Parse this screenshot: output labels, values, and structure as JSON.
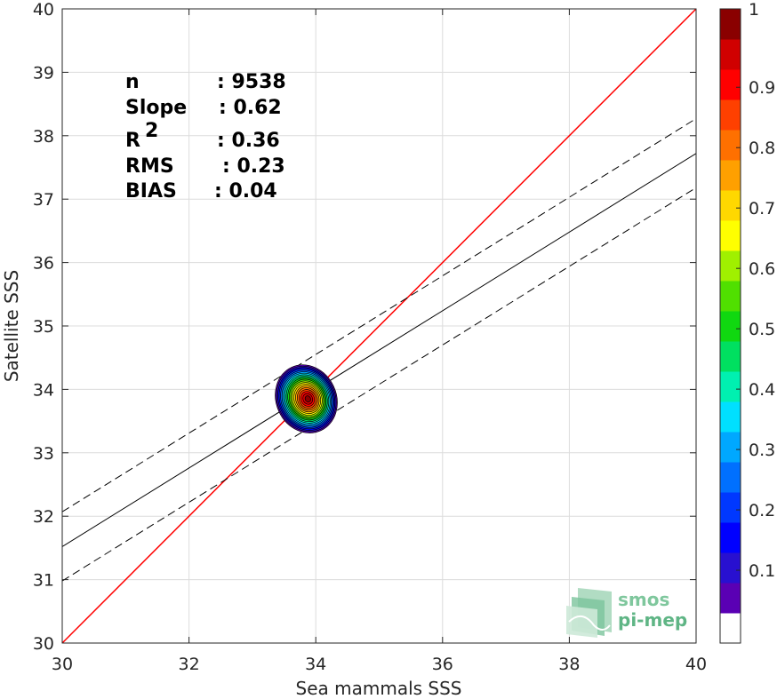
{
  "chart_data": {
    "type": "scatter",
    "subtype": "density-contour",
    "xlabel": "Sea mammals SSS",
    "ylabel": "Satellite SSS",
    "xlim": [
      30,
      40
    ],
    "ylim": [
      30,
      40
    ],
    "xticks": [
      "30",
      "32",
      "34",
      "36",
      "38",
      "40"
    ],
    "yticks": [
      "30",
      "31",
      "32",
      "33",
      "34",
      "35",
      "36",
      "37",
      "38",
      "39",
      "40"
    ],
    "grid": true,
    "stats": [
      {
        "label": "n",
        "value": ": 9538"
      },
      {
        "label": "Slope",
        "value": ": 0.62"
      },
      {
        "label": "R",
        "sup": "2",
        "value": ": 0.36"
      },
      {
        "label": "RMS",
        "value": ": 0.23"
      },
      {
        "label": "BIAS",
        "value": ": 0.04"
      }
    ],
    "density_center": [
      33.85,
      33.85
    ],
    "density_extent": {
      "x": [
        33.45,
        34.4
      ],
      "y": [
        33.35,
        34.45
      ]
    },
    "lines": [
      {
        "name": "1:1",
        "style": "solid",
        "color": "#ff0000",
        "x": [
          30,
          40
        ],
        "y": [
          30,
          40
        ]
      },
      {
        "name": "fit",
        "style": "solid",
        "color": "#000000",
        "x": [
          30,
          40
        ],
        "y": [
          31.52,
          37.72
        ]
      },
      {
        "name": "fit+",
        "style": "dashed",
        "color": "#000000",
        "x": [
          30,
          40
        ],
        "y": [
          32.07,
          38.27
        ]
      },
      {
        "name": "fit-",
        "style": "dashed",
        "color": "#000000",
        "x": [
          30,
          40
        ],
        "y": [
          30.98,
          37.18
        ]
      }
    ],
    "colorbar": {
      "ticks": [
        "0.1",
        "0.2",
        "0.3",
        "0.4",
        "0.5",
        "0.6",
        "0.7",
        "0.8",
        "0.9",
        "1"
      ],
      "colors": [
        "#ffffff",
        "#5a00b4",
        "#2810d0",
        "#0000ff",
        "#0038ff",
        "#0070ff",
        "#00a8ff",
        "#00e0ff",
        "#00f0b0",
        "#00e060",
        "#10d810",
        "#50e000",
        "#a0f000",
        "#ffff00",
        "#ffd800",
        "#ffa000",
        "#ff7000",
        "#ff4000",
        "#ff0000",
        "#d00000",
        "#8a0000"
      ]
    }
  },
  "logo": {
    "line1": "smos",
    "line2": "pi-mep"
  }
}
